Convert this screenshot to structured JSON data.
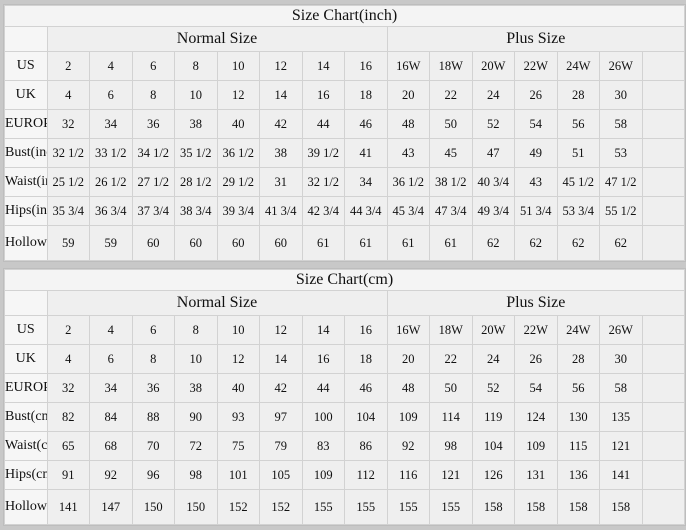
{
  "charts": [
    {
      "title": "Size Chart(inch)",
      "normal_label": "Normal Size",
      "plus_label": "Plus Size",
      "rows": [
        {
          "label": "US",
          "normal": [
            "2",
            "4",
            "6",
            "8",
            "10",
            "12",
            "14",
            "16"
          ],
          "plus": [
            "16W",
            "18W",
            "20W",
            "22W",
            "24W",
            "26W"
          ]
        },
        {
          "label": "UK",
          "normal": [
            "4",
            "6",
            "8",
            "10",
            "12",
            "14",
            "16",
            "18"
          ],
          "plus": [
            "20",
            "22",
            "24",
            "26",
            "28",
            "30"
          ]
        },
        {
          "label": "EUROPE",
          "normal": [
            "32",
            "34",
            "36",
            "38",
            "40",
            "42",
            "44",
            "46"
          ],
          "plus": [
            "48",
            "50",
            "52",
            "54",
            "56",
            "58"
          ]
        },
        {
          "label": "Bust(inch)",
          "normal": [
            "32 1/2",
            "33 1/2",
            "34 1/2",
            "35 1/2",
            "36 1/2",
            "38",
            "39 1/2",
            "41"
          ],
          "plus": [
            "43",
            "45",
            "47",
            "49",
            "51",
            "53"
          ]
        },
        {
          "label": "Waist(inch)",
          "normal": [
            "25 1/2",
            "26 1/2",
            "27 1/2",
            "28 1/2",
            "29 1/2",
            "31",
            "32 1/2",
            "34"
          ],
          "plus": [
            "36 1/2",
            "38 1/2",
            "40 3/4",
            "43",
            "45 1/2",
            "47 1/2"
          ]
        },
        {
          "label": "Hips(inch)",
          "normal": [
            "35 3/4",
            "36 3/4",
            "37 3/4",
            "38 3/4",
            "39 3/4",
            "41 3/4",
            "42 3/4",
            "44 3/4"
          ],
          "plus": [
            "45 3/4",
            "47 3/4",
            "49 3/4",
            "51 3/4",
            "53 3/4",
            "55 1/2"
          ]
        },
        {
          "label": "Hollow to Floor(inch)",
          "normal": [
            "59",
            "59",
            "60",
            "60",
            "60",
            "60",
            "61",
            "61"
          ],
          "plus": [
            "61",
            "61",
            "62",
            "62",
            "62",
            "62"
          ]
        }
      ]
    },
    {
      "title": "Size Chart(cm)",
      "normal_label": "Normal Size",
      "plus_label": "Plus Size",
      "rows": [
        {
          "label": "US",
          "normal": [
            "2",
            "4",
            "6",
            "8",
            "10",
            "12",
            "14",
            "16"
          ],
          "plus": [
            "16W",
            "18W",
            "20W",
            "22W",
            "24W",
            "26W"
          ]
        },
        {
          "label": "UK",
          "normal": [
            "4",
            "6",
            "8",
            "10",
            "12",
            "14",
            "16",
            "18"
          ],
          "plus": [
            "20",
            "22",
            "24",
            "26",
            "28",
            "30"
          ]
        },
        {
          "label": "EUROPE",
          "normal": [
            "32",
            "34",
            "36",
            "38",
            "40",
            "42",
            "44",
            "46"
          ],
          "plus": [
            "48",
            "50",
            "52",
            "54",
            "56",
            "58"
          ]
        },
        {
          "label": "Bust(cm)",
          "normal": [
            "82",
            "84",
            "88",
            "90",
            "93",
            "97",
            "100",
            "104"
          ],
          "plus": [
            "109",
            "114",
            "119",
            "124",
            "130",
            "135"
          ]
        },
        {
          "label": "Waist(cm)",
          "normal": [
            "65",
            "68",
            "70",
            "72",
            "75",
            "79",
            "83",
            "86"
          ],
          "plus": [
            "92",
            "98",
            "104",
            "109",
            "115",
            "121"
          ]
        },
        {
          "label": "Hips(cm)",
          "normal": [
            "91",
            "92",
            "96",
            "98",
            "101",
            "105",
            "109",
            "112"
          ],
          "plus": [
            "116",
            "121",
            "126",
            "131",
            "136",
            "141"
          ]
        },
        {
          "label": "Hollow to Floor(cm)",
          "normal": [
            "141",
            "147",
            "150",
            "150",
            "152",
            "152",
            "155",
            "155"
          ],
          "plus": [
            "155",
            "155",
            "158",
            "158",
            "158",
            "158"
          ]
        }
      ]
    }
  ]
}
